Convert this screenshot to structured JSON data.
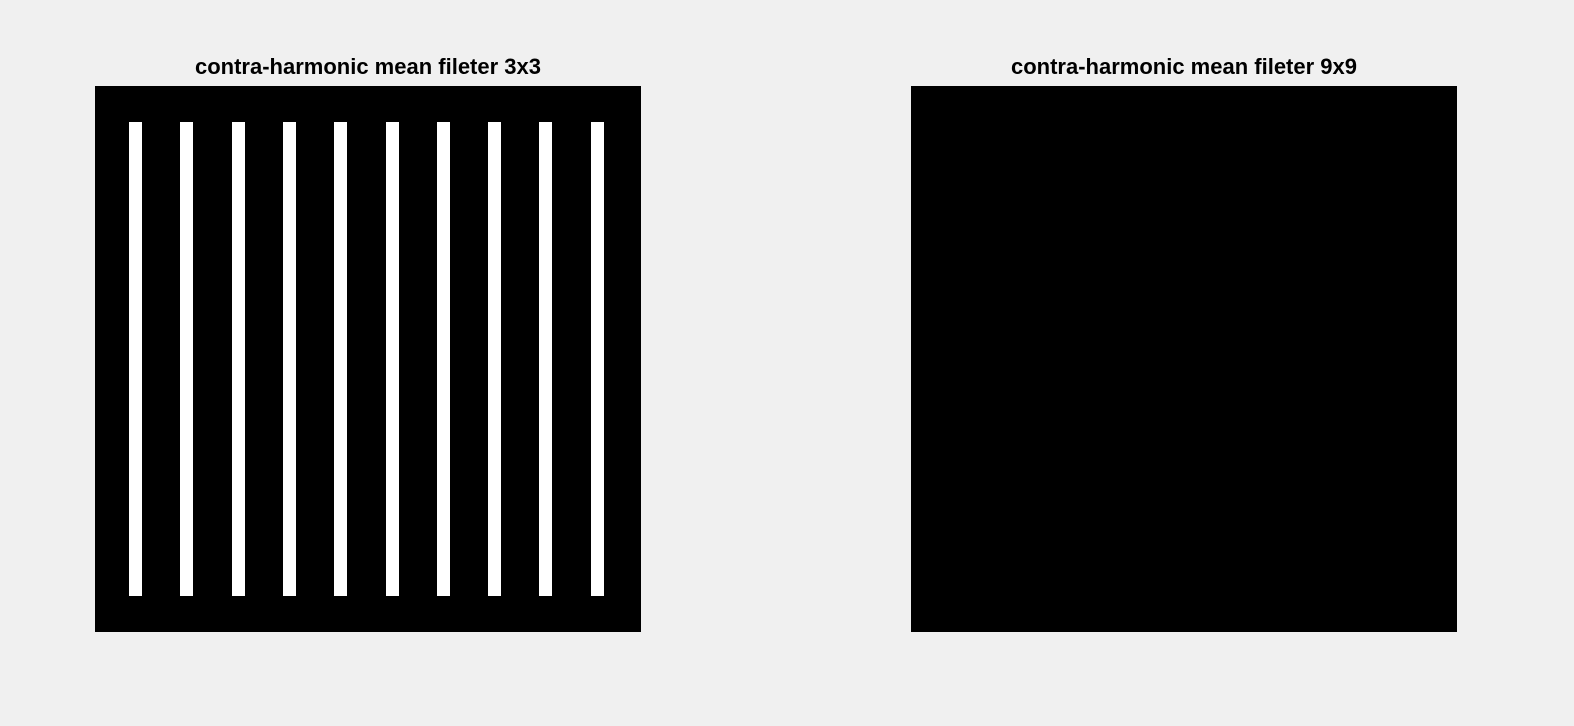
{
  "figure": {
    "background": "#f0f0f0",
    "panels": [
      {
        "title": "contra-harmonic mean fileter 3x3",
        "image_fill": "#000000",
        "bar_color": "#ffffff",
        "bar_count": 10
      },
      {
        "title": "contra-harmonic mean fileter 9x9",
        "image_fill": "#000000",
        "bar_count": 0
      }
    ]
  }
}
